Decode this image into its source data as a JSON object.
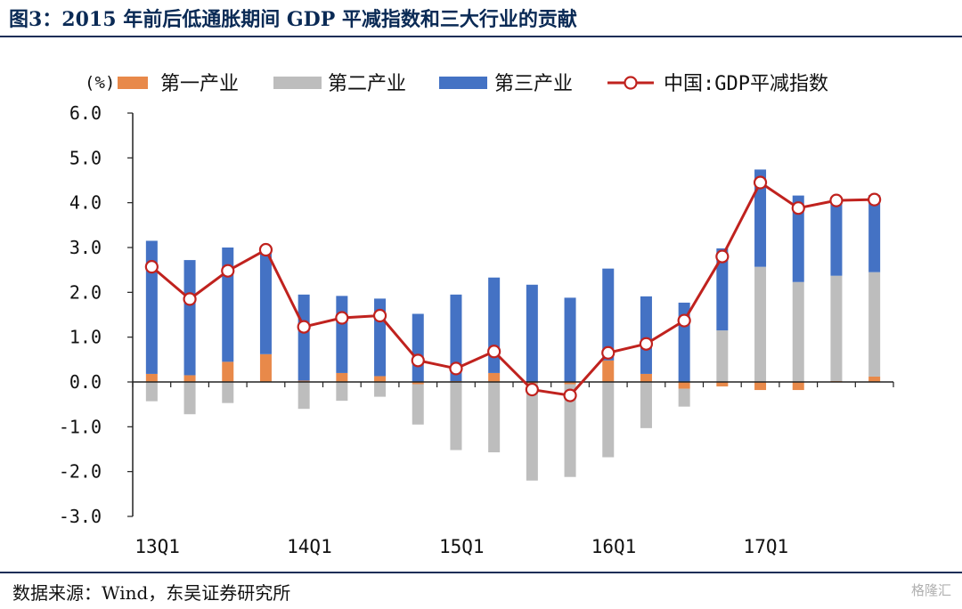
{
  "title": "图3：2015 年前后低通胀期间 GDP 平减指数和三大行业的贡献",
  "source": "数据来源：Wind，东吴证券研究所",
  "watermark": "格隆汇",
  "chart_data": {
    "type": "bar",
    "stacked": true,
    "ylabel": "(%)",
    "ylim": [
      -3.0,
      6.0
    ],
    "yticks": [
      6.0,
      5.0,
      4.0,
      3.0,
      2.0,
      1.0,
      0.0,
      -1.0,
      -2.0,
      -3.0
    ],
    "ytick_labels": [
      "6.0",
      "5.0",
      "4.0",
      "3.0",
      "2.0",
      "1.0",
      "0.0",
      "-1.0",
      "-2.0",
      "-3.0"
    ],
    "categories": [
      "13Q1",
      "13Q2",
      "13Q3",
      "13Q4",
      "14Q1",
      "14Q2",
      "14Q3",
      "14Q4",
      "15Q1",
      "15Q2",
      "15Q3",
      "15Q4",
      "16Q1",
      "16Q2",
      "16Q3",
      "16Q4",
      "17Q1",
      "17Q2",
      "17Q3",
      "17Q4"
    ],
    "xtick_labels": [
      {
        "index": 0,
        "label": "13Q1"
      },
      {
        "index": 4,
        "label": "14Q1"
      },
      {
        "index": 8,
        "label": "15Q1"
      },
      {
        "index": 12,
        "label": "16Q1"
      },
      {
        "index": 16,
        "label": "17Q1"
      }
    ],
    "legend_position": "top",
    "series": [
      {
        "name": "第一产业",
        "kind": "bar",
        "color": "#e8894a",
        "values": [
          0.18,
          0.15,
          0.45,
          0.62,
          0.03,
          0.2,
          0.13,
          -0.05,
          0.02,
          0.2,
          -0.03,
          -0.05,
          0.48,
          0.18,
          -0.15,
          -0.1,
          -0.18,
          -0.18,
          0.02,
          0.12
        ]
      },
      {
        "name": "第二产业",
        "kind": "bar",
        "color": "#bdbdbd",
        "values": [
          -0.43,
          -0.72,
          -0.47,
          0.0,
          -0.6,
          -0.42,
          -0.33,
          -0.9,
          -1.52,
          -1.57,
          -2.17,
          -2.07,
          -1.68,
          -1.03,
          -0.4,
          1.15,
          2.57,
          2.23,
          2.35,
          2.33
        ]
      },
      {
        "name": "第三产业",
        "kind": "bar",
        "color": "#4472c4",
        "values": [
          2.97,
          2.57,
          2.55,
          2.33,
          1.92,
          1.72,
          1.73,
          1.52,
          1.93,
          2.13,
          2.17,
          1.88,
          2.05,
          1.73,
          1.77,
          1.83,
          2.17,
          1.93,
          1.72,
          1.72
        ]
      },
      {
        "name": "中国:GDP平减指数",
        "kind": "line",
        "color": "#c0221e",
        "values": [
          2.57,
          1.85,
          2.48,
          2.95,
          1.23,
          1.43,
          1.48,
          0.48,
          0.3,
          0.68,
          -0.17,
          -0.3,
          0.65,
          0.85,
          1.37,
          2.8,
          4.45,
          3.88,
          4.05,
          4.07
        ]
      }
    ]
  }
}
